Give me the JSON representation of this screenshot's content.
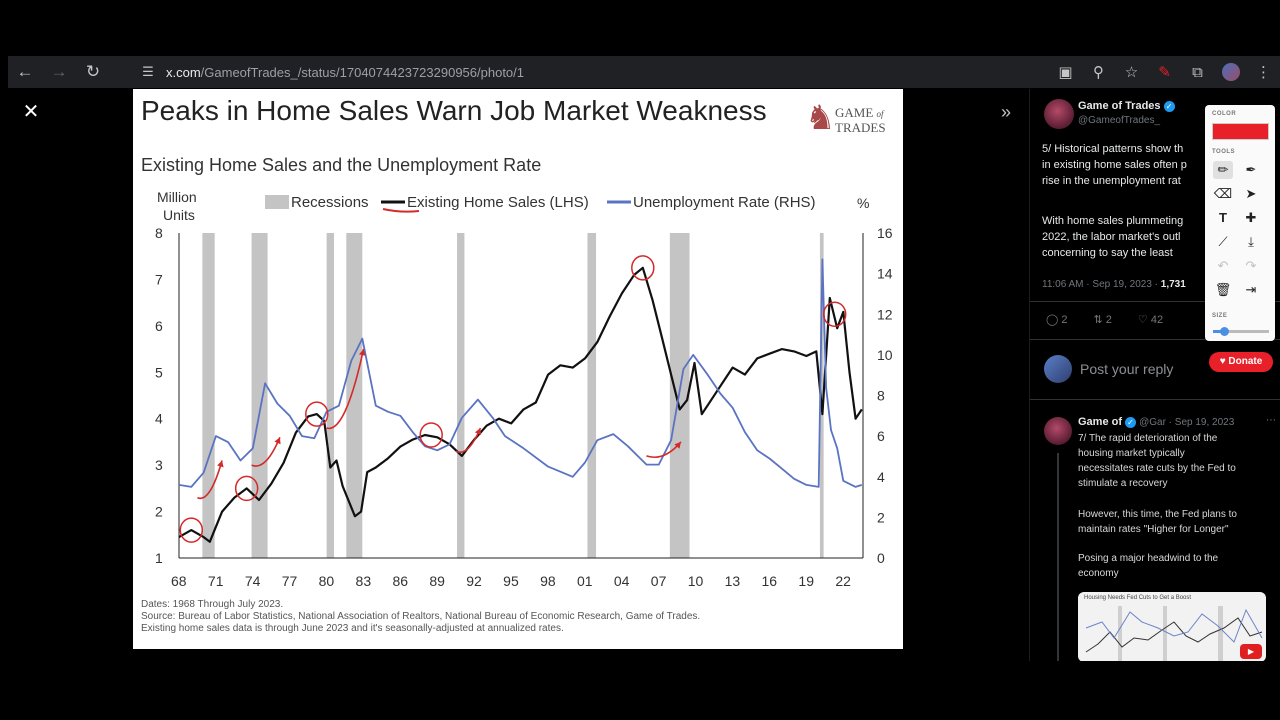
{
  "browser": {
    "url_host": "x.com",
    "url_path": "/GameofTrades_/status/1704074423723290956/photo/1"
  },
  "slide": {
    "title": "Peaks in Home Sales Warn Job Market Weakness",
    "logo_line1": "GAME",
    "logo_line2": "TRADES",
    "logo_of": "of",
    "footnote_lines": [
      "Dates: 1968 Through July 2023.",
      "Source: Bureau of Labor Statistics, National Association of Realtors, National Bureau of Economic Research, Game of Trades.",
      "Existing home sales data is through June 2023 and it's seasonally-adjusted at annualized rates."
    ]
  },
  "chart_data": {
    "type": "line",
    "title": "Existing Home Sales and the Unemployment Rate",
    "left_unit": "Million Units",
    "right_unit": "%",
    "legend": [
      "Recessions",
      "Existing Home Sales (LHS)",
      "Unemployment Rate (RHS)"
    ],
    "x_ticks": [
      "68",
      "71",
      "74",
      "77",
      "80",
      "83",
      "86",
      "89",
      "92",
      "95",
      "98",
      "01",
      "04",
      "07",
      "10",
      "13",
      "16",
      "19",
      "22"
    ],
    "x_range": [
      1968,
      2023.6
    ],
    "left_ticks": [
      1,
      2,
      3,
      4,
      5,
      6,
      7,
      8
    ],
    "left_range": [
      1,
      8
    ],
    "right_ticks": [
      0,
      2,
      4,
      6,
      8,
      10,
      12,
      14,
      16
    ],
    "right_range": [
      0,
      16
    ],
    "recessions": [
      [
        1969.9,
        1970.9
      ],
      [
        1973.9,
        1975.2
      ],
      [
        1980.0,
        1980.6
      ],
      [
        1981.6,
        1982.9
      ],
      [
        1990.6,
        1991.2
      ],
      [
        2001.2,
        2001.9
      ],
      [
        2007.9,
        2009.5
      ],
      [
        2020.1,
        2020.4
      ]
    ],
    "legend_colors": {
      "recession": "#c4c4c4",
      "home_sales": "#111111",
      "unemployment": "#5a73c2",
      "annotation": "#d42a2a"
    },
    "series": [
      {
        "name": "Existing Home Sales (LHS)",
        "axis": "left",
        "points": [
          [
            1968.0,
            1.45
          ],
          [
            1969.0,
            1.6
          ],
          [
            1970.0,
            1.45
          ],
          [
            1970.5,
            1.35
          ],
          [
            1971.5,
            2.0
          ],
          [
            1972.5,
            2.3
          ],
          [
            1973.5,
            2.5
          ],
          [
            1974.5,
            2.25
          ],
          [
            1975.5,
            2.6
          ],
          [
            1976.5,
            3.05
          ],
          [
            1977.5,
            3.7
          ],
          [
            1978.5,
            4.05
          ],
          [
            1979.2,
            4.1
          ],
          [
            1979.8,
            3.95
          ],
          [
            1980.3,
            2.95
          ],
          [
            1980.8,
            3.1
          ],
          [
            1981.3,
            2.55
          ],
          [
            1982.3,
            1.9
          ],
          [
            1982.8,
            2.0
          ],
          [
            1983.3,
            2.85
          ],
          [
            1984.0,
            2.95
          ],
          [
            1985.0,
            3.15
          ],
          [
            1986.0,
            3.4
          ],
          [
            1987.0,
            3.55
          ],
          [
            1988.0,
            3.65
          ],
          [
            1989.0,
            3.6
          ],
          [
            1990.0,
            3.45
          ],
          [
            1991.0,
            3.2
          ],
          [
            1992.0,
            3.55
          ],
          [
            1993.0,
            3.85
          ],
          [
            1994.0,
            4.0
          ],
          [
            1995.0,
            3.9
          ],
          [
            1996.0,
            4.2
          ],
          [
            1997.0,
            4.35
          ],
          [
            1998.0,
            4.95
          ],
          [
            1999.0,
            5.15
          ],
          [
            2000.0,
            5.1
          ],
          [
            2001.0,
            5.3
          ],
          [
            2002.0,
            5.65
          ],
          [
            2003.0,
            6.2
          ],
          [
            2004.0,
            6.7
          ],
          [
            2005.0,
            7.1
          ],
          [
            2005.7,
            7.25
          ],
          [
            2006.5,
            6.55
          ],
          [
            2007.3,
            5.7
          ],
          [
            2008.0,
            4.95
          ],
          [
            2008.7,
            4.2
          ],
          [
            2009.3,
            4.4
          ],
          [
            2009.9,
            5.2
          ],
          [
            2010.5,
            4.1
          ],
          [
            2011.0,
            4.3
          ],
          [
            2012.0,
            4.7
          ],
          [
            2013.0,
            5.1
          ],
          [
            2014.0,
            4.95
          ],
          [
            2015.0,
            5.3
          ],
          [
            2016.0,
            5.4
          ],
          [
            2017.0,
            5.5
          ],
          [
            2018.0,
            5.45
          ],
          [
            2019.0,
            5.35
          ],
          [
            2019.8,
            5.45
          ],
          [
            2020.3,
            4.1
          ],
          [
            2020.9,
            6.6
          ],
          [
            2021.5,
            5.95
          ],
          [
            2022.0,
            6.3
          ],
          [
            2022.5,
            5.0
          ],
          [
            2023.0,
            4.0
          ],
          [
            2023.5,
            4.2
          ]
        ]
      },
      {
        "name": "Unemployment Rate (RHS)",
        "axis": "right",
        "points": [
          [
            1968.0,
            3.6
          ],
          [
            1969.0,
            3.5
          ],
          [
            1970.0,
            4.2
          ],
          [
            1971.0,
            6.0
          ],
          [
            1972.0,
            5.7
          ],
          [
            1973.0,
            4.8
          ],
          [
            1974.0,
            5.4
          ],
          [
            1975.0,
            8.6
          ],
          [
            1976.0,
            7.6
          ],
          [
            1977.0,
            7.0
          ],
          [
            1978.0,
            6.0
          ],
          [
            1979.0,
            5.9
          ],
          [
            1980.0,
            7.2
          ],
          [
            1981.0,
            7.5
          ],
          [
            1982.0,
            9.7
          ],
          [
            1982.9,
            10.8
          ],
          [
            1984.0,
            7.5
          ],
          [
            1985.0,
            7.2
          ],
          [
            1986.0,
            7.0
          ],
          [
            1987.0,
            6.2
          ],
          [
            1988.0,
            5.5
          ],
          [
            1989.0,
            5.3
          ],
          [
            1990.0,
            5.6
          ],
          [
            1991.0,
            6.9
          ],
          [
            1992.3,
            7.8
          ],
          [
            1993.5,
            6.9
          ],
          [
            1994.5,
            6.0
          ],
          [
            1996.0,
            5.4
          ],
          [
            1998.0,
            4.5
          ],
          [
            2000.0,
            4.0
          ],
          [
            2001.0,
            4.7
          ],
          [
            2002.0,
            5.8
          ],
          [
            2003.3,
            6.1
          ],
          [
            2004.5,
            5.5
          ],
          [
            2006.0,
            4.6
          ],
          [
            2007.0,
            4.6
          ],
          [
            2008.0,
            5.8
          ],
          [
            2009.0,
            9.3
          ],
          [
            2009.8,
            10.0
          ],
          [
            2011.0,
            9.0
          ],
          [
            2012.0,
            8.1
          ],
          [
            2013.0,
            7.4
          ],
          [
            2014.0,
            6.2
          ],
          [
            2015.0,
            5.3
          ],
          [
            2016.0,
            4.9
          ],
          [
            2017.0,
            4.4
          ],
          [
            2018.0,
            3.9
          ],
          [
            2019.0,
            3.6
          ],
          [
            2020.0,
            3.5
          ],
          [
            2020.3,
            14.7
          ],
          [
            2020.6,
            8.4
          ],
          [
            2021.0,
            6.3
          ],
          [
            2021.5,
            5.4
          ],
          [
            2022.0,
            3.8
          ],
          [
            2023.0,
            3.5
          ],
          [
            2023.5,
            3.6
          ]
        ]
      }
    ],
    "annotations": {
      "circles": [
        [
          1969.0,
          1.6
        ],
        [
          1973.5,
          2.5
        ],
        [
          1979.2,
          4.1
        ],
        [
          1988.5,
          3.65
        ],
        [
          2005.7,
          7.25
        ],
        [
          2021.3,
          6.25
        ]
      ],
      "arrows": [
        [
          1969.5,
          2.3,
          1971.5,
          3.1
        ],
        [
          1973.9,
          3.0,
          1976.2,
          3.6
        ],
        [
          1980.0,
          3.8,
          1983.0,
          5.5
        ],
        [
          1990.5,
          3.3,
          1992.5,
          3.8
        ],
        [
          2006.0,
          3.2,
          2008.8,
          3.5
        ]
      ]
    }
  },
  "tweet": {
    "author": "Game of Trades",
    "handle": "@GameofTrades_",
    "text_lines": [
      "5/ Historical patterns show th",
      "in existing home sales often p",
      "rise in the unemployment rat"
    ],
    "text2_lines": [
      "With home sales plummeting",
      "2022, the labor market's outl",
      "concerning to say the least"
    ],
    "meta_time": "11:06 AM · Sep 19, 2023 · ",
    "meta_views": "1,731",
    "replies": "2",
    "retweets": "2",
    "likes": "42"
  },
  "reply_box": {
    "placeholder": "Post your reply"
  },
  "tweet2": {
    "author": "Game of",
    "handle_date": "@Gar · Sep 19, 2023",
    "lines": [
      "7/ The rapid deterioration of the",
      "housing market typically",
      "necessitates rate cuts by the Fed to",
      "stimulate a recovery"
    ],
    "lines2": [
      "However, this time, the Fed plans to",
      "maintain rates \"Higher for Longer\""
    ],
    "lines3": [
      "Posing a major headwind to the",
      "economy"
    ],
    "mini_chart_title": "Housing Needs Fed Cuts to Get a Boost"
  },
  "palette": {
    "color_label": "COLOR",
    "tools_label": "TOOLS",
    "size_label": "SIZE",
    "color": "#e8202a",
    "size_level": 0.2
  },
  "donate": {
    "label": "Donate"
  }
}
